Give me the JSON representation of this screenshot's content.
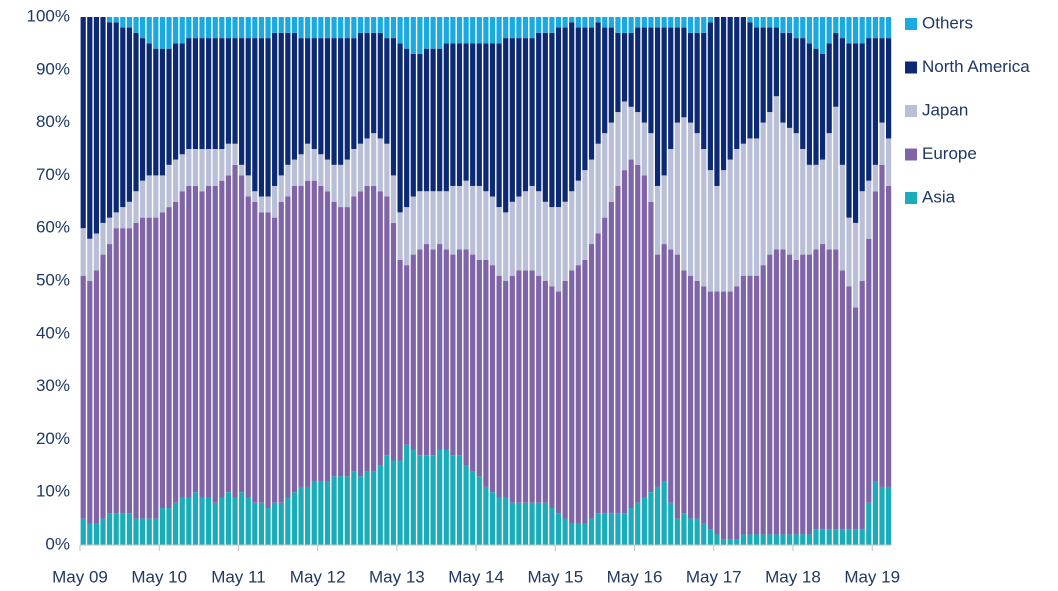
{
  "chart_data": {
    "type": "bar",
    "stacked": true,
    "legend": "right",
    "categories": [
      "May 09",
      null,
      null,
      null,
      null,
      null,
      null,
      null,
      null,
      null,
      null,
      null,
      "May 10",
      null,
      null,
      null,
      null,
      null,
      null,
      null,
      null,
      null,
      null,
      null,
      "May 11",
      null,
      null,
      null,
      null,
      null,
      null,
      null,
      null,
      null,
      null,
      null,
      "May 12",
      null,
      null,
      null,
      null,
      null,
      null,
      null,
      null,
      null,
      null,
      null,
      "May 13",
      null,
      null,
      null,
      null,
      null,
      null,
      null,
      null,
      null,
      null,
      null,
      "May 14",
      null,
      null,
      null,
      null,
      null,
      null,
      null,
      null,
      null,
      null,
      null,
      "May 15",
      null,
      null,
      null,
      null,
      null,
      null,
      null,
      null,
      null,
      null,
      null,
      "May 16",
      null,
      null,
      null,
      null,
      null,
      null,
      null,
      null,
      null,
      null,
      null,
      "May 17",
      null,
      null,
      null,
      null,
      null,
      null,
      null,
      null,
      null,
      null,
      null,
      "May 18",
      null,
      null,
      null,
      null,
      null,
      null,
      null,
      null,
      null,
      null,
      null,
      "May 19",
      null,
      null
    ],
    "series": [
      {
        "name": "Asia",
        "color": "#1aacb8",
        "values": [
          5,
          4,
          4,
          5,
          6,
          6,
          6,
          6,
          5,
          5,
          5,
          5,
          7,
          7,
          8,
          9,
          9,
          10,
          9,
          9,
          8,
          9,
          10,
          9,
          10,
          9,
          8,
          8,
          7,
          8,
          8,
          9,
          10,
          11,
          11,
          12,
          12,
          12,
          13,
          13,
          13,
          14,
          13,
          14,
          14,
          15,
          17,
          16,
          16,
          19,
          18,
          17,
          17,
          17,
          18,
          18,
          17,
          17,
          15,
          14,
          13,
          11,
          10,
          9,
          9,
          8,
          8,
          8,
          8,
          8,
          8,
          7,
          6,
          5,
          4,
          4,
          4,
          5,
          6,
          6,
          6,
          6,
          6,
          7,
          8,
          9,
          10,
          11,
          12,
          8,
          5,
          6,
          5,
          5,
          4,
          3,
          2,
          1,
          1,
          1,
          2,
          2,
          2,
          2,
          2,
          2,
          2,
          2,
          2,
          2,
          2,
          3,
          3,
          3,
          3,
          3,
          3,
          3,
          3,
          8,
          12,
          11,
          11
        ]
      },
      {
        "name": "Europe",
        "color": "#8064a8",
        "values": [
          46,
          46,
          48,
          50,
          51,
          54,
          54,
          54,
          56,
          57,
          57,
          57,
          56,
          57,
          57,
          58,
          59,
          58,
          58,
          59,
          60,
          60,
          60,
          63,
          60,
          57,
          57,
          55,
          56,
          54,
          57,
          57,
          58,
          57,
          58,
          57,
          56,
          55,
          52,
          51,
          51,
          52,
          54,
          54,
          54,
          52,
          49,
          45,
          38,
          34,
          37,
          39,
          40,
          39,
          39,
          38,
          38,
          39,
          41,
          41,
          41,
          43,
          43,
          42,
          41,
          43,
          44,
          44,
          44,
          43,
          42,
          42,
          42,
          45,
          48,
          49,
          50,
          52,
          53,
          56,
          59,
          62,
          65,
          66,
          64,
          61,
          55,
          44,
          45,
          48,
          50,
          46,
          46,
          45,
          45,
          45,
          46,
          47,
          47,
          48,
          49,
          49,
          49,
          51,
          53,
          54,
          54,
          53,
          52,
          53,
          53,
          53,
          54,
          53,
          53,
          49,
          46,
          42,
          47,
          50,
          55,
          61,
          57
        ]
      },
      {
        "name": "Japan",
        "color": "#b9bfd6",
        "values": [
          9,
          8,
          7,
          6,
          5,
          3,
          4,
          5,
          6,
          7,
          8,
          8,
          7,
          8,
          8,
          7,
          7,
          7,
          8,
          7,
          7,
          6,
          6,
          4,
          2,
          4,
          2,
          3,
          3,
          6,
          5,
          6,
          5,
          6,
          7,
          6,
          6,
          6,
          7,
          8,
          9,
          9,
          9,
          9,
          10,
          10,
          10,
          9,
          9,
          11,
          11,
          11,
          10,
          11,
          10,
          11,
          13,
          12,
          13,
          13,
          14,
          13,
          13,
          13,
          13,
          14,
          14,
          15,
          16,
          16,
          15,
          15,
          16,
          15,
          15,
          16,
          17,
          16,
          17,
          16,
          15,
          14,
          13,
          10,
          10,
          10,
          13,
          13,
          13,
          19,
          25,
          29,
          29,
          28,
          26,
          23,
          20,
          23,
          25,
          26,
          25,
          26,
          26,
          27,
          27,
          29,
          24,
          24,
          24,
          20,
          17,
          16,
          16,
          22,
          27,
          20,
          13,
          16,
          17,
          11,
          5,
          8,
          9
        ]
      },
      {
        "name": "North America",
        "color": "#0c2a74",
        "values": [
          40,
          42,
          41,
          39,
          37,
          36,
          34,
          33,
          30,
          27,
          25,
          24,
          24,
          22,
          22,
          21,
          21,
          21,
          21,
          21,
          21,
          21,
          20,
          20,
          24,
          26,
          29,
          30,
          30,
          29,
          27,
          25,
          24,
          22,
          20,
          21,
          22,
          23,
          24,
          24,
          23,
          21,
          21,
          20,
          19,
          20,
          20,
          26,
          32,
          30,
          27,
          26,
          27,
          27,
          27,
          28,
          27,
          27,
          26,
          27,
          27,
          28,
          29,
          31,
          33,
          31,
          30,
          29,
          28,
          30,
          32,
          33,
          34,
          33,
          32,
          29,
          27,
          25,
          23,
          20,
          18,
          15,
          13,
          14,
          16,
          18,
          20,
          30,
          28,
          23,
          18,
          17,
          17,
          19,
          22,
          28,
          32,
          29,
          27,
          25,
          24,
          22,
          21,
          18,
          16,
          13,
          17,
          18,
          18,
          21,
          23,
          22,
          20,
          17,
          14,
          24,
          33,
          34,
          28,
          27,
          24,
          16,
          19
        ]
      },
      {
        "name": "Others",
        "color": "#1ba9e1",
        "values": [
          0,
          0,
          0,
          0,
          1,
          1,
          2,
          2,
          3,
          4,
          5,
          6,
          6,
          6,
          5,
          5,
          4,
          4,
          4,
          4,
          4,
          4,
          4,
          4,
          4,
          4,
          4,
          4,
          4,
          3,
          3,
          3,
          3,
          4,
          4,
          4,
          4,
          4,
          4,
          4,
          4,
          4,
          3,
          3,
          3,
          3,
          4,
          4,
          5,
          6,
          7,
          7,
          6,
          6,
          6,
          5,
          5,
          5,
          5,
          5,
          5,
          5,
          5,
          5,
          4,
          4,
          4,
          4,
          4,
          3,
          3,
          3,
          2,
          2,
          1,
          2,
          2,
          2,
          1,
          2,
          2,
          3,
          3,
          3,
          2,
          2,
          2,
          2,
          2,
          2,
          2,
          2,
          3,
          3,
          3,
          1,
          0,
          0,
          0,
          0,
          0,
          1,
          2,
          2,
          2,
          2,
          3,
          3,
          4,
          4,
          5,
          6,
          7,
          5,
          3,
          4,
          5,
          5,
          5,
          4,
          4,
          4,
          4
        ]
      }
    ],
    "ylim": [
      0,
      100
    ],
    "yticks": [
      {
        "value": 0,
        "label": "0%"
      },
      {
        "value": 10,
        "label": "10%"
      },
      {
        "value": 20,
        "label": "20%"
      },
      {
        "value": 30,
        "label": "30%"
      },
      {
        "value": 40,
        "label": "40%"
      },
      {
        "value": 50,
        "label": "50%"
      },
      {
        "value": 60,
        "label": "60%"
      },
      {
        "value": 70,
        "label": "70%"
      },
      {
        "value": 80,
        "label": "80%"
      },
      {
        "value": 90,
        "label": "90%"
      },
      {
        "value": 100,
        "label": "100%"
      }
    ],
    "grid": false
  }
}
